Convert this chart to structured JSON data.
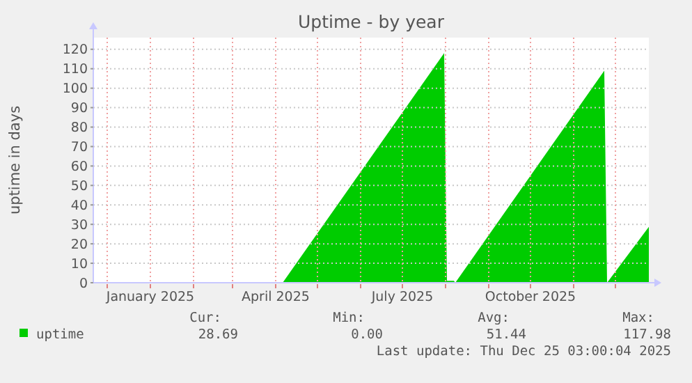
{
  "chart_data": {
    "type": "area",
    "title": "Uptime - by year",
    "ylabel": "uptime in days",
    "x": [
      "2025-04-06",
      "2025-07-31",
      "2025-08-02",
      "2025-08-07",
      "2025-08-08",
      "2025-11-23",
      "2025-11-25",
      "2025-12-25"
    ],
    "series": [
      {
        "name": "uptime",
        "color": "#00cc00",
        "values": [
          0,
          118,
          1,
          1,
          0,
          109,
          0,
          28.7
        ]
      }
    ],
    "xlim": [
      "2024-11-21",
      "2025-12-25"
    ],
    "xticks": [
      {
        "value": "2024-12-01",
        "label": null
      },
      {
        "value": "2025-01-01",
        "label": "January 2025"
      },
      {
        "value": "2025-02-01",
        "label": null
      },
      {
        "value": "2025-03-01",
        "label": null
      },
      {
        "value": "2025-04-01",
        "label": "April 2025"
      },
      {
        "value": "2025-05-01",
        "label": null
      },
      {
        "value": "2025-06-01",
        "label": null
      },
      {
        "value": "2025-07-01",
        "label": "July 2025"
      },
      {
        "value": "2025-08-01",
        "label": null
      },
      {
        "value": "2025-09-01",
        "label": null
      },
      {
        "value": "2025-10-01",
        "label": "October 2025"
      },
      {
        "value": "2025-11-01",
        "label": null
      },
      {
        "value": "2025-12-01",
        "label": null
      }
    ],
    "ylim": [
      0,
      126
    ],
    "yticks": [
      0,
      10,
      20,
      30,
      40,
      50,
      60,
      70,
      80,
      90,
      100,
      110,
      120
    ],
    "grid": true,
    "legend": "bottom",
    "annotations": [
      "Cur:",
      "Min:",
      "Avg:",
      "Max:",
      "28.69",
      "0.00",
      "51.44",
      "117.98",
      "Last update: Thu Dec 25 03:00:04 2025"
    ]
  }
}
